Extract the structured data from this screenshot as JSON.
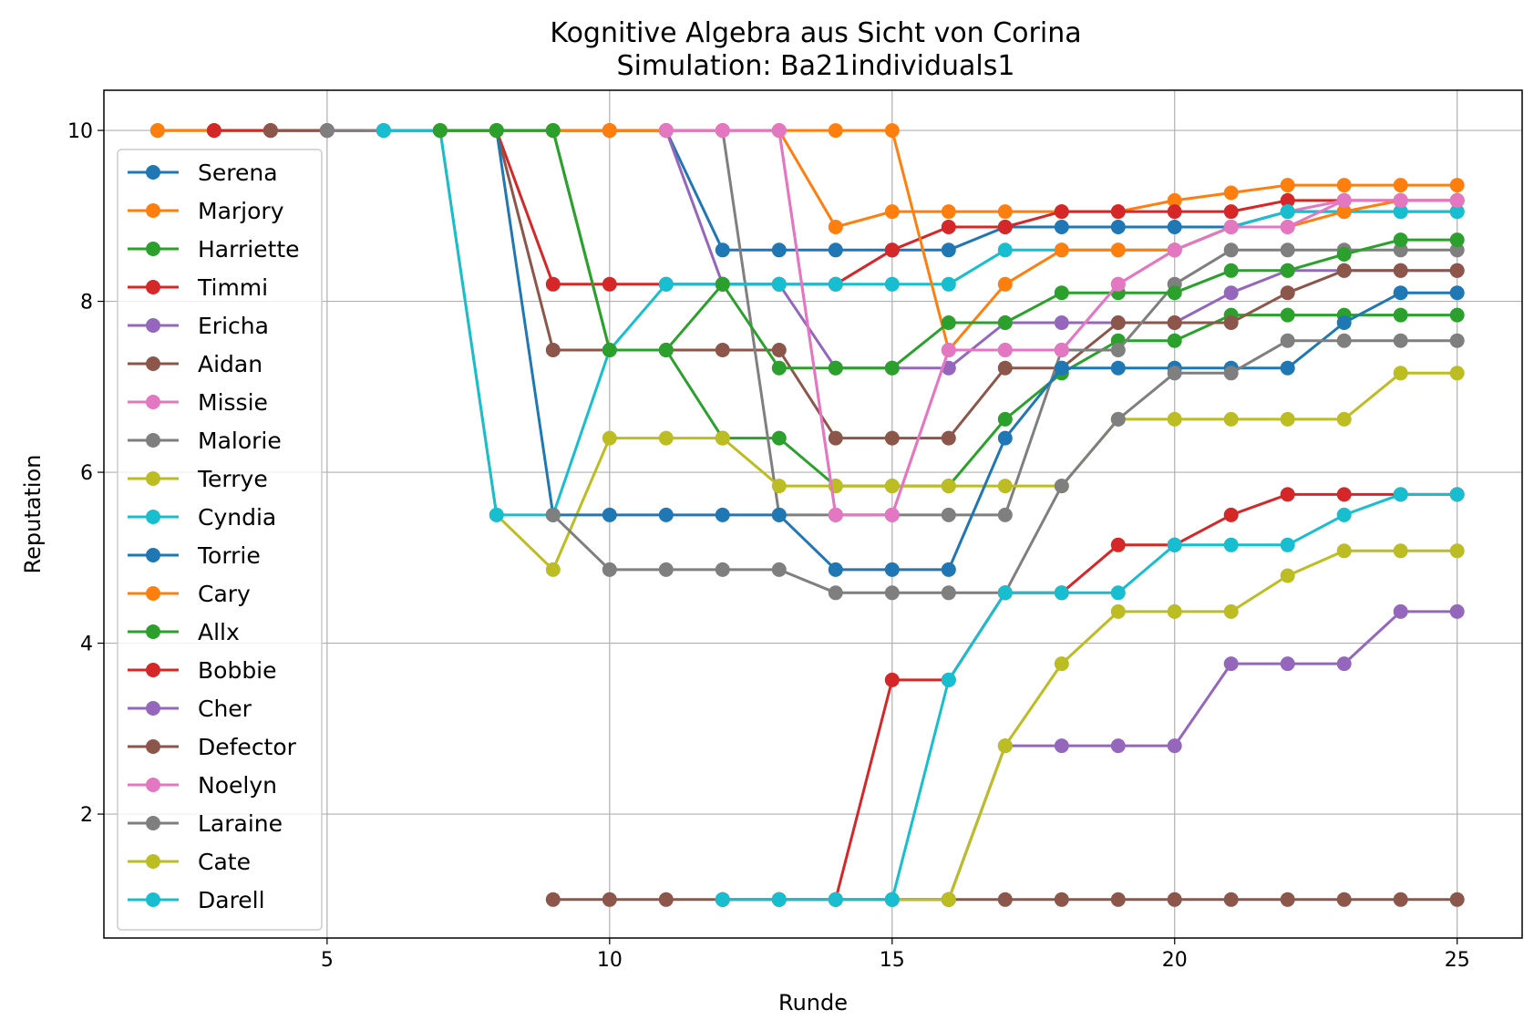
{
  "chart_data": {
    "type": "line",
    "title": "Kognitive Algebra aus Sicht von Corina",
    "subtitle": "Simulation: Ba21individuals1",
    "xlabel": "Runde",
    "ylabel": "Reputation",
    "xlim": [
      1.05,
      26.15
    ],
    "ylim": [
      0.55,
      10.47
    ],
    "xticks": [
      5,
      10,
      15,
      20,
      25
    ],
    "yticks": [
      2,
      4,
      6,
      8,
      10
    ],
    "grid": true,
    "legend_position": "left",
    "series": [
      {
        "name": "Serena",
        "color": "#1f77b4",
        "x": [
          2,
          3,
          4,
          5,
          6,
          7,
          8,
          9,
          10,
          11,
          12,
          13,
          14,
          15,
          16,
          17,
          18,
          19,
          20,
          21,
          22,
          23,
          24,
          25
        ],
        "y": [
          10,
          10,
          10,
          10,
          10,
          10,
          10,
          10,
          10,
          10,
          8.6,
          8.6,
          8.6,
          8.6,
          8.6,
          8.87,
          8.87,
          8.87,
          8.87,
          8.87,
          9.05,
          9.05,
          9.05,
          9.05
        ]
      },
      {
        "name": "Marjory",
        "color": "#ff7f0e",
        "x": [
          2,
          3,
          4,
          5,
          6,
          7,
          8,
          9,
          10,
          11,
          12,
          13,
          14,
          15,
          16,
          17,
          18,
          19,
          20,
          21,
          22,
          23,
          24,
          25
        ],
        "y": [
          10,
          10,
          10,
          10,
          10,
          10,
          10,
          10,
          10,
          10,
          10,
          10,
          8.87,
          9.05,
          9.05,
          9.05,
          9.05,
          9.05,
          9.18,
          9.27,
          9.36,
          9.36,
          9.36,
          9.36
        ]
      },
      {
        "name": "Harriette",
        "color": "#2ca02c",
        "x": [
          3,
          4,
          5,
          6,
          7,
          8,
          9,
          10,
          11,
          12,
          13,
          14,
          15,
          16,
          17,
          18,
          19,
          20,
          21,
          22,
          23,
          24,
          25
        ],
        "y": [
          10,
          10,
          10,
          10,
          10,
          10,
          10,
          7.43,
          7.43,
          6.4,
          6.4,
          5.84,
          5.84,
          5.84,
          6.62,
          7.16,
          7.54,
          7.54,
          7.84,
          7.84,
          7.84,
          7.84,
          7.84
        ]
      },
      {
        "name": "Timmi",
        "color": "#d62728",
        "x": [
          3,
          4,
          5,
          6,
          7,
          8,
          9,
          10,
          11,
          12,
          13,
          14,
          15,
          16,
          17,
          18,
          19,
          20,
          21,
          22,
          23,
          24,
          25
        ],
        "y": [
          10,
          10,
          10,
          10,
          10,
          10,
          8.2,
          8.2,
          8.2,
          8.2,
          8.2,
          8.2,
          8.6,
          8.87,
          8.87,
          9.05,
          9.05,
          9.05,
          9.05,
          9.18,
          9.18,
          9.18,
          9.18
        ]
      },
      {
        "name": "Ericha",
        "color": "#9467bd",
        "x": [
          4,
          5,
          6,
          7,
          8,
          9,
          10,
          11,
          12,
          13,
          14,
          15,
          16,
          17,
          18,
          19,
          20,
          21,
          22,
          23,
          24,
          25
        ],
        "y": [
          10,
          10,
          10,
          10,
          10,
          10,
          10,
          10,
          8.2,
          8.2,
          7.22,
          7.22,
          7.22,
          7.75,
          7.75,
          7.75,
          7.75,
          8.1,
          8.36,
          8.36,
          8.36,
          8.36
        ]
      },
      {
        "name": "Aidan",
        "color": "#8c564b",
        "x": [
          4,
          5,
          6,
          7,
          8,
          9,
          10,
          11,
          12,
          13,
          14,
          15,
          16,
          17,
          18,
          19,
          20,
          21,
          22,
          23,
          24,
          25
        ],
        "y": [
          10,
          10,
          10,
          10,
          10,
          7.43,
          7.43,
          7.43,
          7.43,
          7.43,
          6.4,
          6.4,
          6.4,
          7.22,
          7.22,
          7.75,
          7.75,
          7.75,
          8.1,
          8.36,
          8.36,
          8.36
        ]
      },
      {
        "name": "Missie",
        "color": "#e377c2",
        "x": [
          5,
          6,
          7,
          8,
          9,
          10,
          11,
          12,
          13,
          14,
          15,
          16,
          17,
          18,
          19,
          20,
          21,
          22,
          23,
          24,
          25
        ],
        "y": [
          10,
          10,
          10,
          10,
          10,
          10,
          10,
          10,
          10,
          5.5,
          5.5,
          7.43,
          7.43,
          7.43,
          8.2,
          8.6,
          8.87,
          9.05,
          9.18,
          9.18,
          9.18
        ]
      },
      {
        "name": "Malorie",
        "color": "#7f7f7f",
        "x": [
          5,
          6,
          7,
          8,
          9,
          10,
          11,
          12,
          13,
          14,
          15,
          16,
          17,
          18,
          19,
          20,
          21,
          22,
          23,
          24,
          25
        ],
        "y": [
          10,
          10,
          10,
          10,
          10,
          10,
          10,
          10,
          5.5,
          5.5,
          5.5,
          5.5,
          5.5,
          7.43,
          7.43,
          8.2,
          8.6,
          8.6,
          8.6,
          8.6,
          8.6
        ]
      },
      {
        "name": "Terrye",
        "color": "#bcbd22",
        "x": [
          6,
          7,
          8,
          9,
          10,
          11,
          12,
          13,
          14,
          15,
          16,
          17,
          18,
          19,
          20,
          21,
          22,
          23,
          24,
          25
        ],
        "y": [
          10,
          10,
          5.5,
          4.86,
          6.4,
          6.4,
          6.4,
          5.84,
          5.84,
          5.84,
          5.84,
          5.84,
          5.84,
          6.62,
          6.62,
          6.62,
          6.62,
          6.62,
          7.16,
          7.16
        ]
      },
      {
        "name": "Cyndia",
        "color": "#17becf",
        "x": [
          6,
          7,
          8,
          9,
          10,
          11,
          12,
          13,
          14,
          15,
          16,
          17,
          18,
          19,
          20,
          21,
          22,
          23,
          24,
          25
        ],
        "y": [
          10,
          10,
          5.5,
          5.5,
          7.43,
          8.2,
          8.2,
          8.2,
          8.2,
          8.2,
          8.2,
          8.6,
          8.6,
          8.6,
          8.6,
          8.87,
          9.05,
          9.05,
          9.05,
          9.05
        ]
      },
      {
        "name": "Torrie",
        "color": "#1f77b4",
        "x": [
          7,
          8,
          9,
          10,
          11,
          12,
          13,
          14,
          15,
          16,
          17,
          18,
          19,
          20,
          21,
          22,
          23,
          24,
          25
        ],
        "y": [
          10,
          10,
          5.5,
          5.5,
          5.5,
          5.5,
          5.5,
          4.86,
          4.86,
          4.86,
          6.4,
          7.22,
          7.22,
          7.22,
          7.22,
          7.22,
          7.75,
          8.1,
          8.1
        ]
      },
      {
        "name": "Cary",
        "color": "#ff7f0e",
        "x": [
          7,
          8,
          9,
          10,
          11,
          12,
          13,
          14,
          15,
          16,
          17,
          18,
          19,
          20,
          21,
          22,
          23,
          24,
          25
        ],
        "y": [
          10,
          10,
          10,
          10,
          10,
          10,
          10,
          10,
          10,
          7.43,
          8.2,
          8.6,
          8.6,
          8.6,
          8.87,
          8.87,
          9.05,
          9.18,
          9.18
        ]
      },
      {
        "name": "Allx",
        "color": "#2ca02c",
        "x": [
          7,
          8,
          9,
          10,
          11,
          12,
          13,
          14,
          15,
          16,
          17,
          18,
          19,
          20,
          21,
          22,
          23,
          24,
          25
        ],
        "y": [
          10,
          10,
          10,
          7.43,
          7.43,
          8.2,
          7.22,
          7.22,
          7.22,
          7.75,
          7.75,
          8.1,
          8.1,
          8.1,
          8.36,
          8.36,
          8.55,
          8.72,
          8.72
        ]
      },
      {
        "name": "Bobbie",
        "color": "#d62728",
        "x": [
          12,
          13,
          14,
          15,
          16,
          17,
          18,
          19,
          20,
          21,
          22,
          23,
          24,
          25
        ],
        "y": [
          1,
          1,
          1,
          3.57,
          3.57,
          4.59,
          4.59,
          5.15,
          5.15,
          5.5,
          5.74,
          5.74,
          5.74,
          5.74
        ]
      },
      {
        "name": "Cher",
        "color": "#9467bd",
        "x": [
          12,
          13,
          14,
          15,
          16,
          17,
          18,
          19,
          20,
          21,
          22,
          23,
          24,
          25
        ],
        "y": [
          1,
          1,
          1,
          1,
          1,
          2.8,
          2.8,
          2.8,
          2.8,
          3.76,
          3.76,
          3.76,
          4.37,
          4.37
        ]
      },
      {
        "name": "Defector",
        "color": "#8c564b",
        "x": [
          9,
          10,
          11,
          12,
          13,
          14,
          15,
          16,
          17,
          18,
          19,
          20,
          21,
          22,
          23,
          24,
          25
        ],
        "y": [
          1,
          1,
          1,
          1,
          1,
          1,
          1,
          1,
          1,
          1,
          1,
          1,
          1,
          1,
          1,
          1,
          1
        ]
      },
      {
        "name": "Noelyn",
        "color": "#e377c2",
        "x": [
          11,
          12,
          13,
          14,
          15,
          16,
          17,
          18,
          19,
          20,
          21,
          22,
          23,
          24,
          25
        ],
        "y": [
          10,
          10,
          10,
          5.5,
          5.5,
          7.43,
          7.43,
          7.43,
          8.2,
          8.6,
          8.87,
          8.87,
          9.18,
          9.18,
          9.18
        ]
      },
      {
        "name": "Laraine",
        "color": "#7f7f7f",
        "x": [
          9,
          10,
          11,
          12,
          13,
          14,
          15,
          16,
          17,
          18,
          19,
          20,
          21,
          22,
          23,
          24,
          25
        ],
        "y": [
          5.5,
          4.86,
          4.86,
          4.86,
          4.86,
          4.59,
          4.59,
          4.59,
          4.59,
          5.84,
          6.62,
          7.16,
          7.16,
          7.54,
          7.54,
          7.54,
          7.54
        ]
      },
      {
        "name": "Cate",
        "color": "#bcbd22",
        "x": [
          12,
          13,
          14,
          15,
          16,
          17,
          18,
          19,
          20,
          21,
          22,
          23,
          24,
          25
        ],
        "y": [
          1,
          1,
          1,
          1,
          1,
          2.8,
          3.76,
          4.37,
          4.37,
          4.37,
          4.79,
          5.08,
          5.08,
          5.08
        ]
      },
      {
        "name": "Darell",
        "color": "#17becf",
        "x": [
          12,
          13,
          14,
          15,
          16,
          17,
          18,
          19,
          20,
          21,
          22,
          23,
          24,
          25
        ],
        "y": [
          1,
          1,
          1,
          1,
          3.57,
          4.59,
          4.59,
          4.59,
          5.15,
          5.15,
          5.15,
          5.5,
          5.74,
          5.74
        ]
      }
    ]
  }
}
